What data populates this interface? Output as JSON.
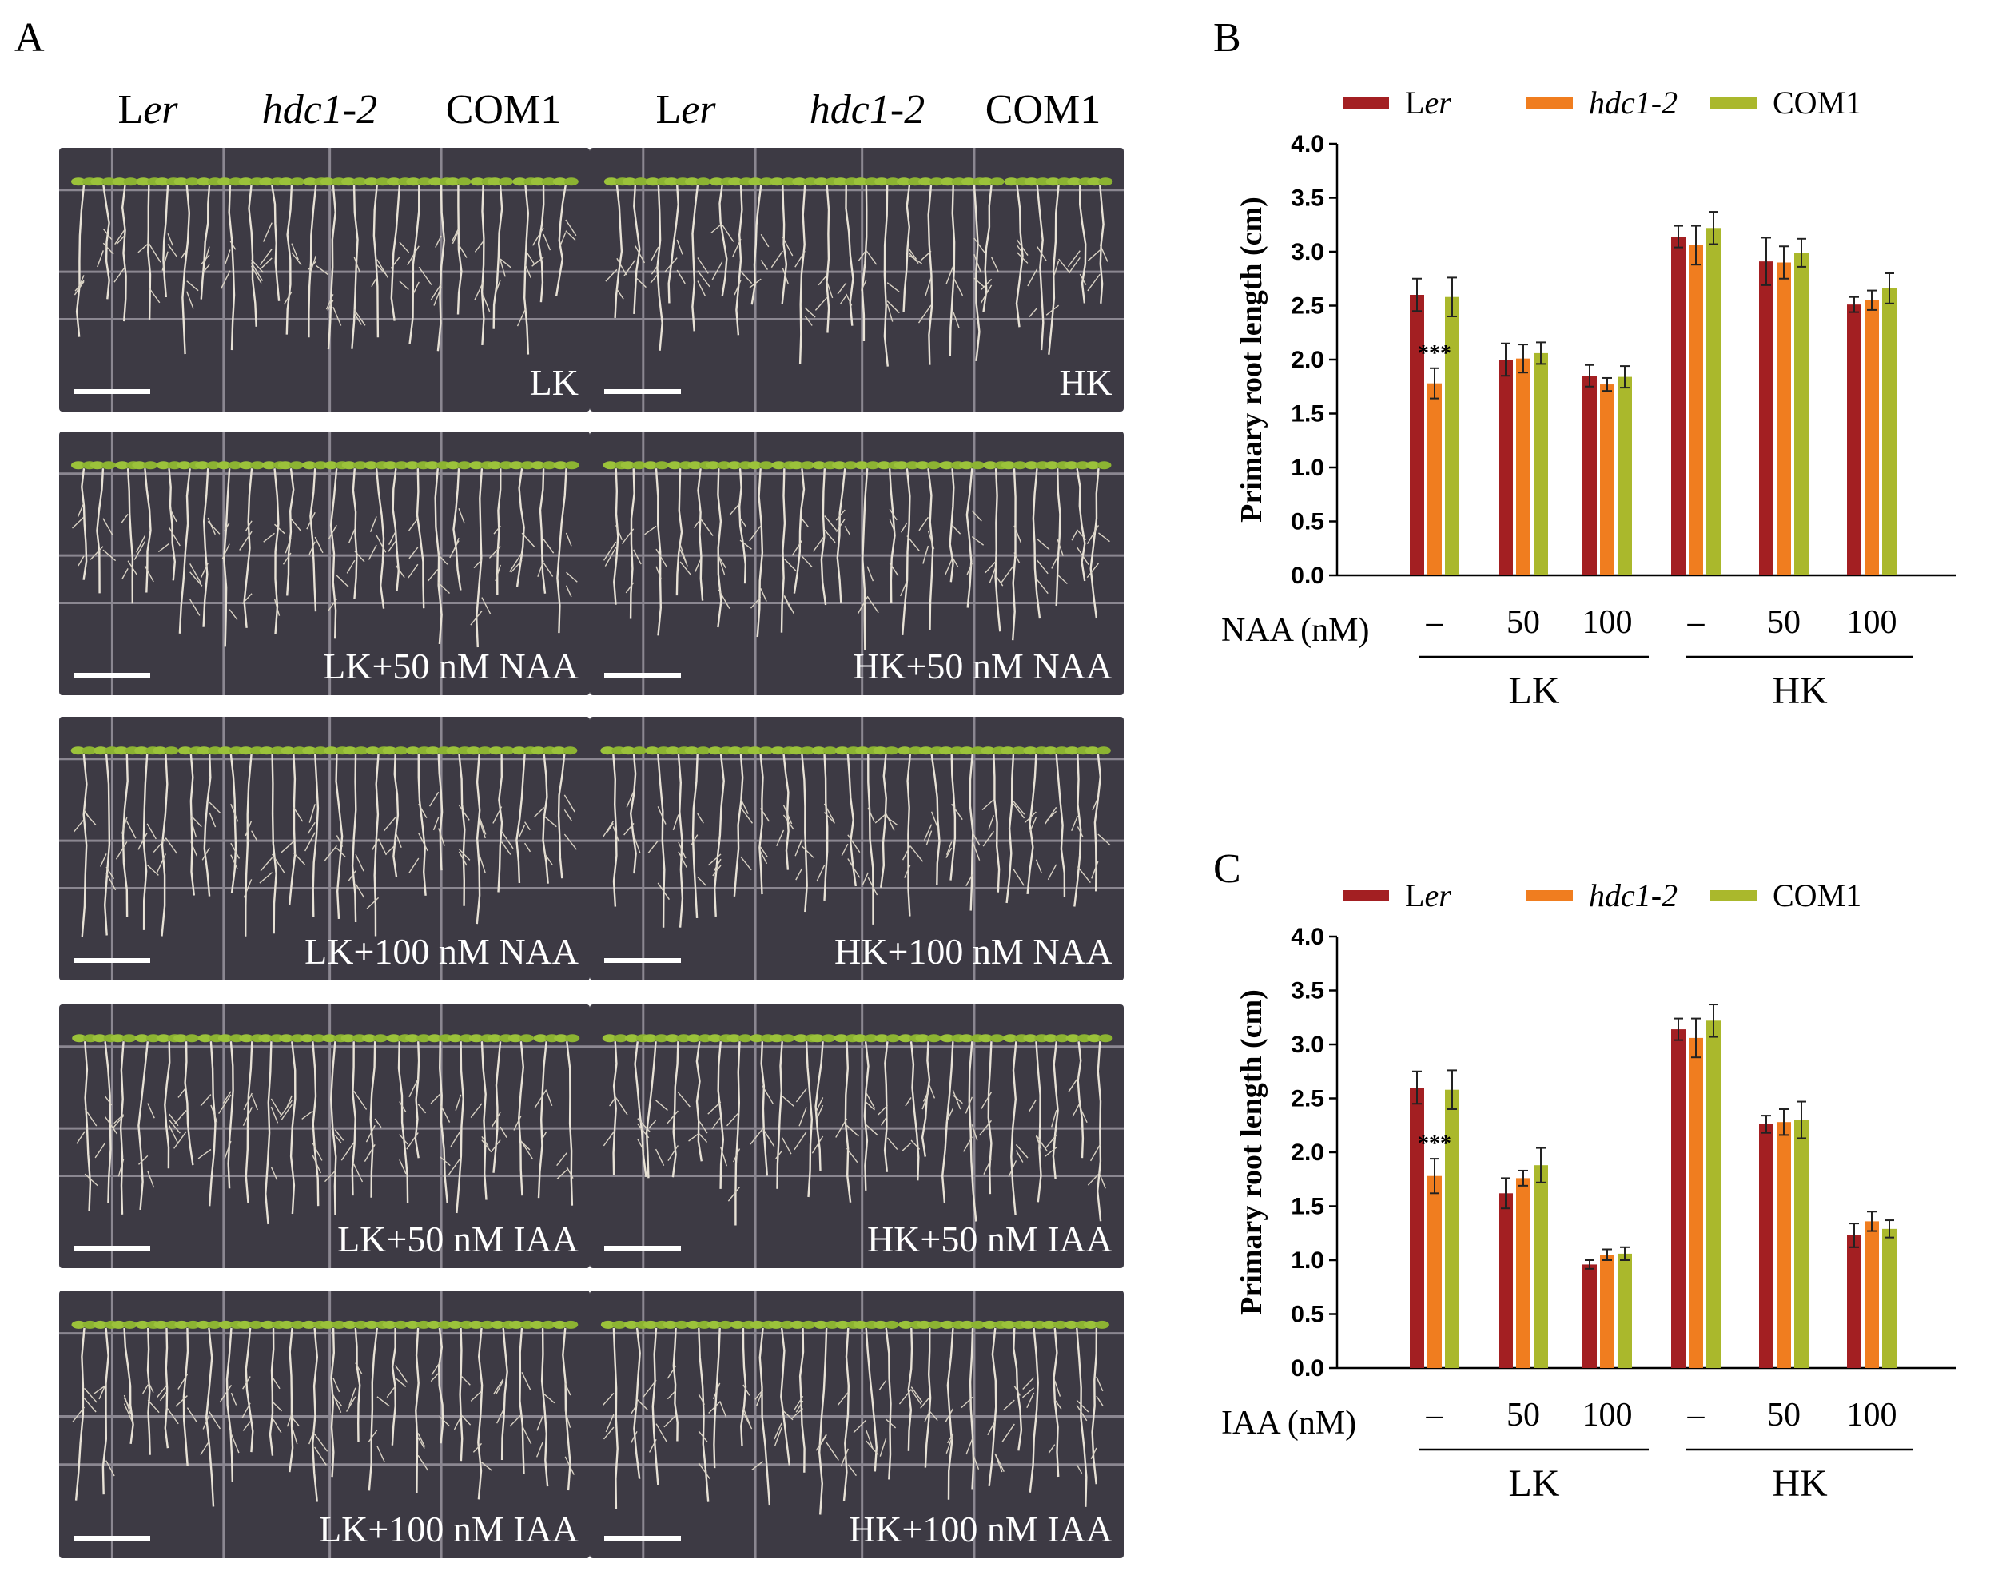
{
  "panel_a": {
    "letter": "A",
    "genotypes_left": [
      "Ler",
      "hdc1-2",
      "COM1"
    ],
    "genotypes_right": [
      "Ler",
      "hdc1-2",
      "COM1"
    ],
    "plates": [
      {
        "left": "LK",
        "right": "HK"
      },
      {
        "left": "LK+50 nM NAA",
        "right": "HK+50 nM NAA"
      },
      {
        "left": "LK+100 nM NAA",
        "right": "HK+100 nM NAA"
      },
      {
        "left": "LK+50 nM IAA",
        "right": "HK+50 nM IAA"
      },
      {
        "left": "LK+100 nM IAA",
        "right": "HK+100 nM IAA"
      }
    ]
  },
  "chart_data": [
    {
      "panel": "B",
      "type": "bar",
      "ylabel": "Primary root length (cm)",
      "ylim": [
        0,
        4
      ],
      "yticks": [
        "0.0",
        "0.5",
        "1.0",
        "1.5",
        "2.0",
        "2.5",
        "3.0",
        "3.5",
        "4.0"
      ],
      "treatment_label": "NAA (nM)",
      "categories": [
        "–",
        "50",
        "100",
        "–",
        "50",
        "100"
      ],
      "groups": [
        "LK",
        "HK"
      ],
      "legend_position": "top",
      "annotation": "***",
      "series": [
        {
          "name": "Ler",
          "color": "#a31f22",
          "values": [
            2.6,
            2.0,
            1.85,
            3.14,
            2.91,
            2.51
          ],
          "errors": [
            0.15,
            0.15,
            0.1,
            0.1,
            0.22,
            0.07
          ]
        },
        {
          "name": "hdc1-2",
          "color": "#f07d1f",
          "values": [
            1.78,
            2.01,
            1.77,
            3.06,
            2.9,
            2.55
          ],
          "errors": [
            0.14,
            0.13,
            0.06,
            0.18,
            0.15,
            0.09
          ]
        },
        {
          "name": "COM1",
          "color": "#aab82c",
          "values": [
            2.58,
            2.06,
            1.84,
            3.22,
            2.99,
            2.66
          ],
          "errors": [
            0.18,
            0.1,
            0.1,
            0.15,
            0.13,
            0.14
          ]
        }
      ]
    },
    {
      "panel": "C",
      "type": "bar",
      "ylabel": "Primary root length (cm)",
      "ylim": [
        0,
        4
      ],
      "yticks": [
        "0.0",
        "0.5",
        "1.0",
        "1.5",
        "2.0",
        "2.5",
        "3.0",
        "3.5",
        "4.0"
      ],
      "treatment_label": "IAA (nM)",
      "categories": [
        "–",
        "50",
        "100",
        "–",
        "50",
        "100"
      ],
      "groups": [
        "LK",
        "HK"
      ],
      "legend_position": "top",
      "annotation": "***",
      "series": [
        {
          "name": "Ler",
          "color": "#a31f22",
          "values": [
            2.6,
            1.62,
            0.96,
            3.14,
            2.26,
            1.23
          ],
          "errors": [
            0.15,
            0.14,
            0.04,
            0.1,
            0.08,
            0.11
          ]
        },
        {
          "name": "hdc1-2",
          "color": "#f07d1f",
          "values": [
            1.78,
            1.76,
            1.05,
            3.06,
            2.28,
            1.36
          ],
          "errors": [
            0.16,
            0.07,
            0.05,
            0.18,
            0.12,
            0.09
          ]
        },
        {
          "name": "COM1",
          "color": "#aab82c",
          "values": [
            2.58,
            1.88,
            1.06,
            3.22,
            2.3,
            1.29
          ],
          "errors": [
            0.18,
            0.16,
            0.06,
            0.15,
            0.17,
            0.08
          ]
        }
      ]
    }
  ]
}
